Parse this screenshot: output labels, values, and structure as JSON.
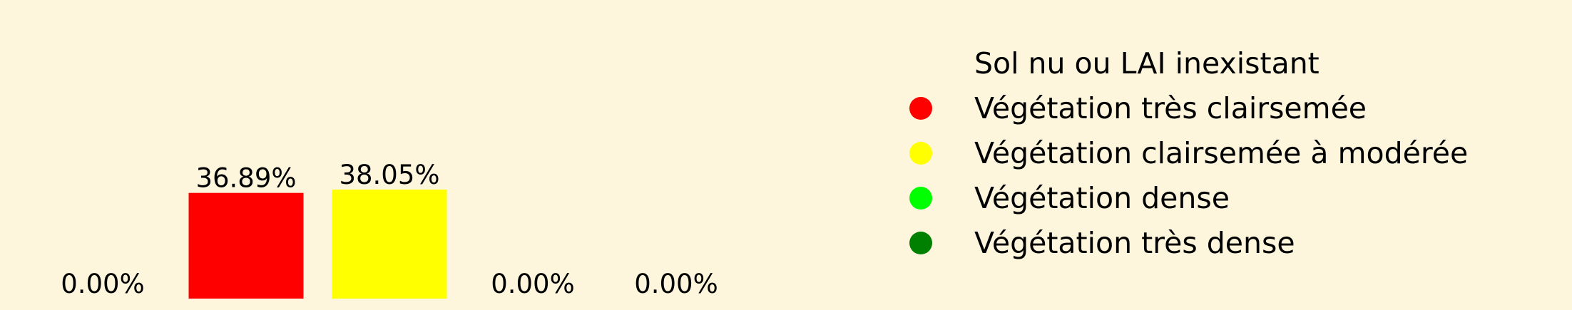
{
  "background_color": "#fdf6dc",
  "chart_data": {
    "type": "bar",
    "categories": [
      "Sol nu ou LAI inexistant",
      "Végétation très clairsemée",
      "Végétation clairsemée à modérée",
      "Végétation dense",
      "Végétation très dense"
    ],
    "values": [
      0.0,
      36.89,
      38.05,
      0.0,
      0.0
    ],
    "value_labels": [
      "0.00%",
      "36.89%",
      "38.05%",
      "0.00%",
      "0.00%"
    ],
    "colors": [
      "#fdf6dc",
      "#ff0000",
      "#ffff00",
      "#00ff00",
      "#008000"
    ],
    "title": "",
    "xlabel": "",
    "ylabel": "",
    "axes_visible": false,
    "grid": false,
    "legend": {
      "position": "right",
      "marker": "circle",
      "entries": [
        "Sol nu ou LAI inexistant",
        "Végétation très clairsemée",
        "Végétation clairsemée à modérée",
        "Végétation dense",
        "Végétation très dense"
      ]
    }
  }
}
